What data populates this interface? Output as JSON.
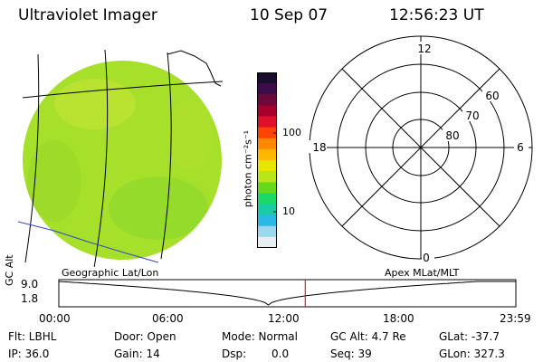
{
  "header": {
    "instrument": "Ultraviolet Imager",
    "date": "10 Sep 07",
    "time": "12:56:23 UT"
  },
  "colorbar": {
    "unit_label": "photon cm⁻²s⁻¹",
    "tick_100": "100",
    "tick_10": "10",
    "colors_top_to_bottom": [
      "#1a0c2e",
      "#3d0a4a",
      "#6b0a3a",
      "#a8002a",
      "#e0102a",
      "#ff4400",
      "#ff8800",
      "#ffb800",
      "#e6e600",
      "#b8e61a",
      "#66d91a",
      "#1ad966",
      "#1acca6",
      "#2ab8e6",
      "#99d9f0",
      "#e8eef2"
    ]
  },
  "globe": {
    "disk_color": "#a6e02a",
    "grid_label": "Geographic Lat/Lon"
  },
  "polar": {
    "grid_label": "Apex MLat/MLT",
    "mlt_12": "12",
    "mlt_18": "18",
    "mlt_6": "6",
    "mlt_0": "0",
    "lat_60": "60",
    "lat_70": "70",
    "lat_80": "80"
  },
  "orbit": {
    "axis_title": "GC Alt",
    "y_top": "9.0",
    "y_bottom": "1.8",
    "x_ticks": [
      "00:00",
      "06:00",
      "12:00",
      "18:00",
      "23:59"
    ],
    "current_time_marker_hours": 12.94,
    "marker_color": "#e02020"
  },
  "status": {
    "flt": "Flt: LBHL",
    "ip": "IP: 36.0",
    "door": "Door: Open",
    "gain": "Gain: 14",
    "mode": "Mode: Normal",
    "dsp_label": "Dsp:",
    "dsp_value": "0.0",
    "gc_alt": "GC Alt: 4.7 Re",
    "seq": "Seq: 39",
    "glat": "GLat: -37.7",
    "glon": "GLon: 327.3"
  }
}
